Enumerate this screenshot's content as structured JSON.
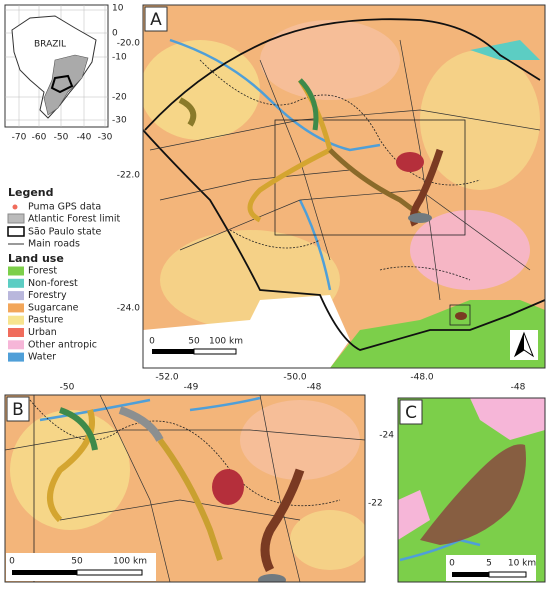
{
  "inset": {
    "title": "BRAZIL",
    "lat_labels": [
      "10",
      "0",
      "-10",
      "-20",
      "-30"
    ],
    "lon_labels": [
      "-70",
      "-60",
      "-50",
      "-40",
      "-30"
    ]
  },
  "panel_a": {
    "label": "A",
    "lat_labels": [
      "-20.0",
      "-22.0",
      "-24.0"
    ],
    "lon_labels": [
      "-52.0",
      "-50.0",
      "-48.0"
    ],
    "scale_labels": [
      "0",
      "50",
      "100 km"
    ]
  },
  "legend": {
    "title": "Legend",
    "items": [
      {
        "label": "Puma GPS data"
      },
      {
        "label": "Atlantic Forest limit"
      },
      {
        "label": "São Paulo state"
      },
      {
        "label": "Main roads"
      }
    ],
    "land_use_title": "Land use",
    "land_use": [
      {
        "label": "Forest",
        "color": "#7ccf4a"
      },
      {
        "label": "Non-forest",
        "color": "#5ccdc3"
      },
      {
        "label": "Forestry",
        "color": "#b9b7dc"
      },
      {
        "label": "Sugarcane",
        "color": "#f2a65a"
      },
      {
        "label": "Pasture",
        "color": "#f7e48f"
      },
      {
        "label": "Urban",
        "color": "#f06c5c"
      },
      {
        "label": "Other antropic",
        "color": "#f6b6d8"
      },
      {
        "label": "Water",
        "color": "#4f9fd8"
      }
    ]
  },
  "panel_b": {
    "label": "B",
    "lon_labels": [
      "-50",
      "-49",
      "-48"
    ],
    "lat_labels": [
      "-22"
    ],
    "scale_labels": [
      "0",
      "50",
      "100 km"
    ]
  },
  "panel_c": {
    "label": "C",
    "lon_labels": [
      "-48"
    ],
    "lat_labels": [
      "-24"
    ],
    "scale_labels": [
      "0",
      "5",
      "10 km"
    ]
  }
}
